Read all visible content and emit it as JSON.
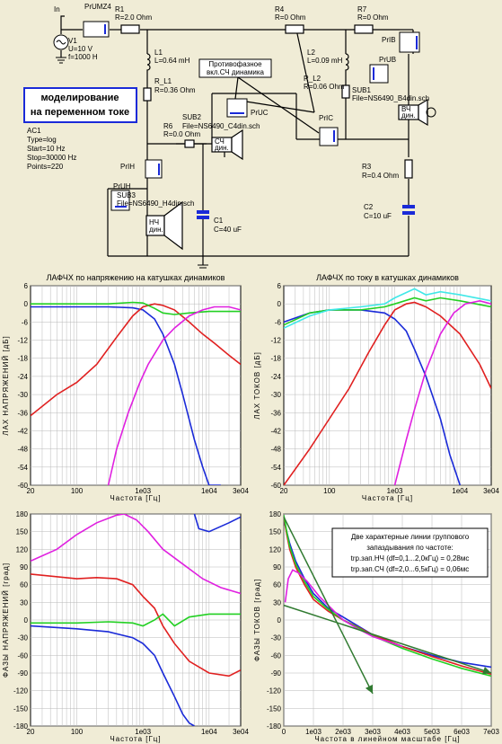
{
  "colors": {
    "red": "#e02020",
    "blue": "#1a2ad8",
    "green": "#22d022",
    "magenta": "#e020e0",
    "cyan": "#40e8e8",
    "darkgreen": "#307a30",
    "bg": "#f0ecd6"
  },
  "schematic": {
    "source": {
      "in": "In",
      "name": "V1",
      "u": "U=10 V",
      "f": "f=1000 H"
    },
    "probes": {
      "prumz4": "PrUMZ4",
      "pri8": "PrIB",
      "pru8": "PrUB",
      "pric": "PrIC",
      "pruc": "PrUC",
      "priн": "PrIH",
      "pruн": "PrUH"
    },
    "r1": [
      "R1",
      "R=2.0 Ohm"
    ],
    "r4": [
      "R4",
      "R=0 Ohm"
    ],
    "r7": [
      "R7",
      "R=0 Ohm"
    ],
    "l1": [
      "L1",
      "L=0.64 mH"
    ],
    "rl1": [
      "R_L1",
      "R=0.36 Ohm"
    ],
    "l2": [
      "L2",
      "L=0.09 mH"
    ],
    "rl2": [
      "R_L2",
      "R=0.06 Ohm"
    ],
    "r6": [
      "R6",
      "R=0.0 Ohm"
    ],
    "r3": [
      "R3",
      "R=0.4 Ohm"
    ],
    "c1": [
      "C1",
      "C=40 uF"
    ],
    "c2": [
      "C2",
      "C=10 uF"
    ],
    "sub1": [
      "SUB1",
      "File=NS6490_B4din.sch"
    ],
    "sub2": [
      "SUB2",
      "File=NS6490_C4din.sch"
    ],
    "sub3": [
      "SUB3",
      "File=NS6490_H4din.sch"
    ],
    "note": [
      "Противофазное",
      "вкл.СЧ динамика"
    ],
    "title": [
      "моделирование",
      "на переменном токе"
    ],
    "ac": [
      "AC1",
      "Type=log",
      "Start=10 Hz",
      "Stop=30000 Hz",
      "Points=220"
    ],
    "spk_b": [
      "ВЧ",
      "дин."
    ],
    "spk_c": [
      "СЧ",
      "дин."
    ],
    "spk_h": [
      "НЧ",
      "дин."
    ]
  },
  "chart_data": [
    {
      "type": "line",
      "title": "ЛАФЧХ по напряжению на катушках динамиков",
      "xlabel": "Частота [Гц]",
      "ylabel": "ЛАХ НАПРЯЖЕНИЙ [дБ]",
      "xscale": "log",
      "xlim": [
        20,
        30000
      ],
      "ylim": [
        -60,
        6
      ],
      "xticks": [
        "20",
        "100",
        "1e03",
        "1e04",
        "3e04"
      ],
      "yticks": [
        "6",
        "0",
        "-6",
        "-12",
        "-18",
        "-24",
        "-30",
        "-36",
        "-42",
        "-48",
        "-54",
        "-60"
      ],
      "series": [
        {
          "color": "blue",
          "x": [
            20,
            100,
            300,
            700,
            1000,
            1500,
            2000,
            3000,
            4000,
            6000,
            8000,
            10000,
            15000
          ],
          "y": [
            -1,
            -1,
            -1,
            -1.3,
            -2,
            -5,
            -10,
            -20,
            -30,
            -45,
            -54,
            -60,
            -60
          ]
        },
        {
          "color": "red",
          "x": [
            20,
            50,
            100,
            200,
            400,
            700,
            1000,
            1500,
            2000,
            3000,
            5000,
            8000,
            12000,
            20000,
            30000
          ],
          "y": [
            -37,
            -30,
            -26,
            -20,
            -11,
            -4,
            -1,
            0,
            -0.5,
            -2,
            -6,
            -10,
            -13,
            -17,
            -20
          ]
        },
        {
          "color": "green",
          "x": [
            20,
            100,
            300,
            700,
            1000,
            1500,
            2000,
            3000,
            5000,
            10000,
            30000
          ],
          "y": [
            0,
            0,
            0,
            0.5,
            0.3,
            -1.5,
            -3,
            -3.5,
            -3,
            -2.5,
            -2.5
          ]
        },
        {
          "color": "magenta",
          "x": [
            300,
            400,
            600,
            900,
            1200,
            2000,
            3000,
            5000,
            8000,
            12000,
            20000,
            30000
          ],
          "y": [
            -60,
            -48,
            -36,
            -26,
            -20,
            -12,
            -8,
            -4,
            -2,
            -1,
            -1,
            -2
          ]
        }
      ]
    },
    {
      "type": "line",
      "title": "ЛАФЧХ по току в катушках динамиков",
      "xlabel": "Частота [Гц]",
      "ylabel": "ЛАХ ТОКОВ [дБ]",
      "xscale": "log",
      "xlim": [
        20,
        30000
      ],
      "ylim": [
        -60,
        6
      ],
      "xticks": [
        "20",
        "100",
        "1e03",
        "1e04",
        "3e04"
      ],
      "yticks": [
        "6",
        "0",
        "-6",
        "-12",
        "-18",
        "-24",
        "-30",
        "-36",
        "-42",
        "-48",
        "-54",
        "-60"
      ],
      "series": [
        {
          "color": "blue",
          "x": [
            20,
            50,
            100,
            300,
            700,
            1000,
            1500,
            2000,
            3000,
            5000,
            7000,
            10000
          ],
          "y": [
            -6,
            -3,
            -2,
            -2,
            -3,
            -5,
            -9,
            -15,
            -24,
            -38,
            -50,
            -60
          ]
        },
        {
          "color": "red",
          "x": [
            20,
            50,
            100,
            200,
            400,
            700,
            1000,
            1500,
            2000,
            3000,
            5000,
            10000,
            20000,
            30000
          ],
          "y": [
            -60,
            -48,
            -38,
            -28,
            -16,
            -7,
            -2,
            0,
            0.5,
            -1,
            -4,
            -10,
            -20,
            -28
          ]
        },
        {
          "color": "green",
          "x": [
            20,
            50,
            100,
            300,
            700,
            1000,
            2000,
            3000,
            5000,
            10000,
            30000
          ],
          "y": [
            -7,
            -3,
            -2,
            -2,
            -1,
            0,
            2,
            1,
            2,
            1,
            -1
          ]
        },
        {
          "color": "cyan",
          "x": [
            20,
            50,
            100,
            300,
            700,
            1000,
            2000,
            3000,
            5000,
            10000,
            30000
          ],
          "y": [
            -8,
            -4,
            -2,
            -1,
            0,
            2,
            5,
            3,
            4,
            3,
            1
          ]
        },
        {
          "color": "magenta",
          "x": [
            1000,
            1500,
            2000,
            3000,
            5000,
            8000,
            12000,
            20000,
            30000
          ],
          "y": [
            -60,
            -45,
            -35,
            -22,
            -10,
            -3,
            0,
            1,
            0
          ]
        }
      ]
    },
    {
      "type": "line",
      "xlabel": "Частота [Гц]",
      "ylabel": "ФАЗЫ НАПРЯЖЕНИЙ [град]",
      "xscale": "log",
      "xlim": [
        20,
        30000
      ],
      "ylim": [
        -180,
        180
      ],
      "xticks": [
        "20",
        "100",
        "1e03",
        "1e04",
        "3e04"
      ],
      "yticks": [
        "180",
        "150",
        "120",
        "90",
        "60",
        "30",
        "0",
        "-30",
        "-60",
        "-90",
        "-120",
        "-150",
        "-180"
      ],
      "series": [
        {
          "color": "magenta",
          "x": [
            20,
            50,
            100,
            200,
            400,
            520,
            800,
            1200,
            2000,
            4000,
            8000,
            15000,
            30000
          ],
          "y": [
            100,
            120,
            145,
            165,
            178,
            180,
            170,
            150,
            120,
            95,
            70,
            55,
            45
          ]
        },
        {
          "color": "red",
          "x": [
            20,
            100,
            200,
            400,
            700,
            1000,
            1500,
            2000,
            3000,
            5000,
            10000,
            20000,
            30000
          ],
          "y": [
            78,
            70,
            72,
            70,
            60,
            40,
            20,
            -10,
            -40,
            -70,
            -90,
            -95,
            -85
          ]
        },
        {
          "color": "green",
          "x": [
            20,
            100,
            300,
            700,
            1000,
            1500,
            2000,
            3000,
            5000,
            10000,
            30000
          ],
          "y": [
            -5,
            -5,
            -3,
            -5,
            -10,
            0,
            10,
            -10,
            5,
            10,
            10
          ]
        },
        {
          "color": "blue",
          "x": [
            20,
            100,
            300,
            700,
            1000,
            1500,
            2000,
            3000,
            4000,
            5000,
            6000
          ],
          "y": [
            -10,
            -15,
            -20,
            -30,
            -40,
            -60,
            -90,
            -130,
            -160,
            -175,
            -180
          ]
        },
        {
          "color": "blue",
          "x": [
            6000,
            7000,
            10000,
            20000,
            30000
          ],
          "y": [
            180,
            155,
            150,
            165,
            175
          ]
        }
      ]
    },
    {
      "type": "line",
      "xlabel": "Частота в линейном масштабе [Гц]",
      "ylabel": "ФАЗЫ ТОКОВ [град]",
      "xscale": "linear",
      "xlim": [
        0,
        7000
      ],
      "ylim": [
        -180,
        180
      ],
      "xticks": [
        "0",
        "1e03",
        "2e03",
        "3e03",
        "4e03",
        "5e03",
        "6e03",
        "7e03"
      ],
      "yticks": [
        "180",
        "150",
        "120",
        "90",
        "60",
        "30",
        "0",
        "-30",
        "-60",
        "-90",
        "-120",
        "-150",
        "-180"
      ],
      "annotation": [
        "Две характерные линии группового",
        "запаздывания по частоте:",
        "trp.зап.НЧ  (df=0,1...2,0кГц) = 0,28мс",
        "trp.зап.СЧ  (df=2,0...6,5кГц) = 0,06мс"
      ],
      "series": [
        {
          "color": "blue",
          "x": [
            0,
            100,
            200,
            400,
            700,
            1000,
            1500,
            2000,
            2500,
            3000,
            4000,
            5000,
            6000,
            7000
          ],
          "y": [
            170,
            150,
            130,
            100,
            70,
            45,
            20,
            5,
            -10,
            -25,
            -45,
            -60,
            -72,
            -80
          ]
        },
        {
          "color": "red",
          "x": [
            0,
            100,
            200,
            400,
            700,
            1000,
            1500,
            2000,
            2500,
            3000,
            4000,
            5000,
            6000,
            7000
          ],
          "y": [
            175,
            145,
            120,
            90,
            60,
            35,
            15,
            0,
            -12,
            -25,
            -45,
            -62,
            -78,
            -92
          ]
        },
        {
          "color": "green",
          "x": [
            0,
            100,
            200,
            400,
            700,
            1000,
            1500,
            2000,
            2500,
            3000,
            4000,
            5000,
            6000,
            7000
          ],
          "y": [
            178,
            150,
            125,
            95,
            65,
            40,
            18,
            0,
            -13,
            -27,
            -48,
            -66,
            -82,
            -95
          ]
        },
        {
          "color": "magenta",
          "x": [
            50,
            150,
            300,
            500,
            800,
            1200,
            1700,
            2000,
            2500,
            3000,
            4000
          ],
          "y": [
            30,
            70,
            85,
            80,
            65,
            40,
            15,
            0,
            -15,
            -28,
            -45
          ]
        },
        {
          "color": "darkgreen",
          "x": [
            0,
            3000
          ],
          "y": [
            175,
            -125
          ],
          "arrow": true
        },
        {
          "color": "darkgreen",
          "x": [
            0,
            7000
          ],
          "y": [
            25,
            -90
          ],
          "arrow": true
        }
      ]
    }
  ]
}
